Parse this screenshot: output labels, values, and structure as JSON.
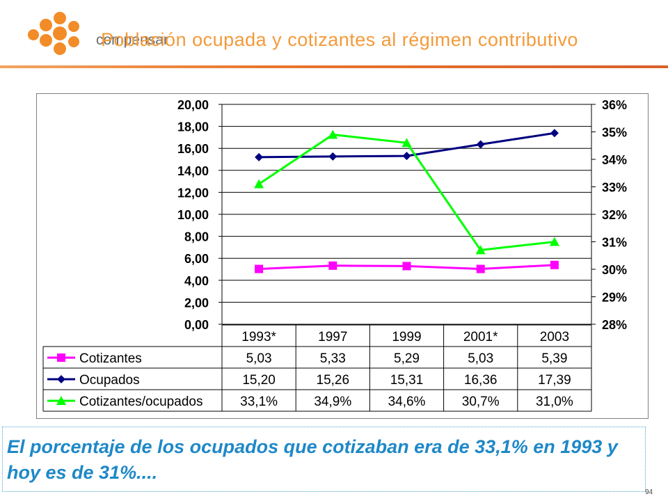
{
  "header": {
    "logo_text": "compensar",
    "title": "Población ocupada y cotizantes al régimen contributivo"
  },
  "colors": {
    "title": "#f39a3a",
    "logo_orange": "#f28c28",
    "cotizantes": "#ff00ff",
    "ocupados": "#000080",
    "ratio": "#00ff00",
    "note_text": "#1e88c7"
  },
  "chart_data": {
    "type": "line",
    "categories": [
      "1993*",
      "1997",
      "1999",
      "2001*",
      "2003"
    ],
    "y_left": {
      "ticks": [
        "20,00",
        "18,00",
        "16,00",
        "14,00",
        "12,00",
        "10,00",
        "8,00",
        "6,00",
        "4,00",
        "2,00",
        "0,00"
      ],
      "ylim": [
        0,
        20
      ]
    },
    "y_right": {
      "ticks": [
        "36%",
        "35%",
        "34%",
        "33%",
        "32%",
        "31%",
        "30%",
        "29%",
        "28%"
      ],
      "ylim": [
        28,
        36
      ]
    },
    "series": [
      {
        "name": "Cotizantes",
        "axis": "left",
        "marker": "square",
        "color": "#ff00ff",
        "values": [
          5.03,
          5.33,
          5.29,
          5.03,
          5.39
        ],
        "labels": [
          "5,03",
          "5,33",
          "5,29",
          "5,03",
          "5,39"
        ]
      },
      {
        "name": "Ocupados",
        "axis": "left",
        "marker": "diamond",
        "color": "#000080",
        "values": [
          15.2,
          15.26,
          15.31,
          16.36,
          17.39
        ],
        "labels": [
          "15,20",
          "15,26",
          "15,31",
          "16,36",
          "17,39"
        ]
      },
      {
        "name": "Cotizantes/ocupados",
        "axis": "right",
        "marker": "triangle",
        "color": "#00ff00",
        "values": [
          33.1,
          34.9,
          34.6,
          30.7,
          31.0
        ],
        "labels": [
          "33,1%",
          "34,9%",
          "34,6%",
          "30,7%",
          "31,0%"
        ]
      }
    ],
    "grid": true,
    "legend": "data-table"
  },
  "note": {
    "text": "El porcentaje de los ocupados que cotizaban era de 33,1% en 1993 y hoy es de 31%...."
  },
  "page_number": "94"
}
